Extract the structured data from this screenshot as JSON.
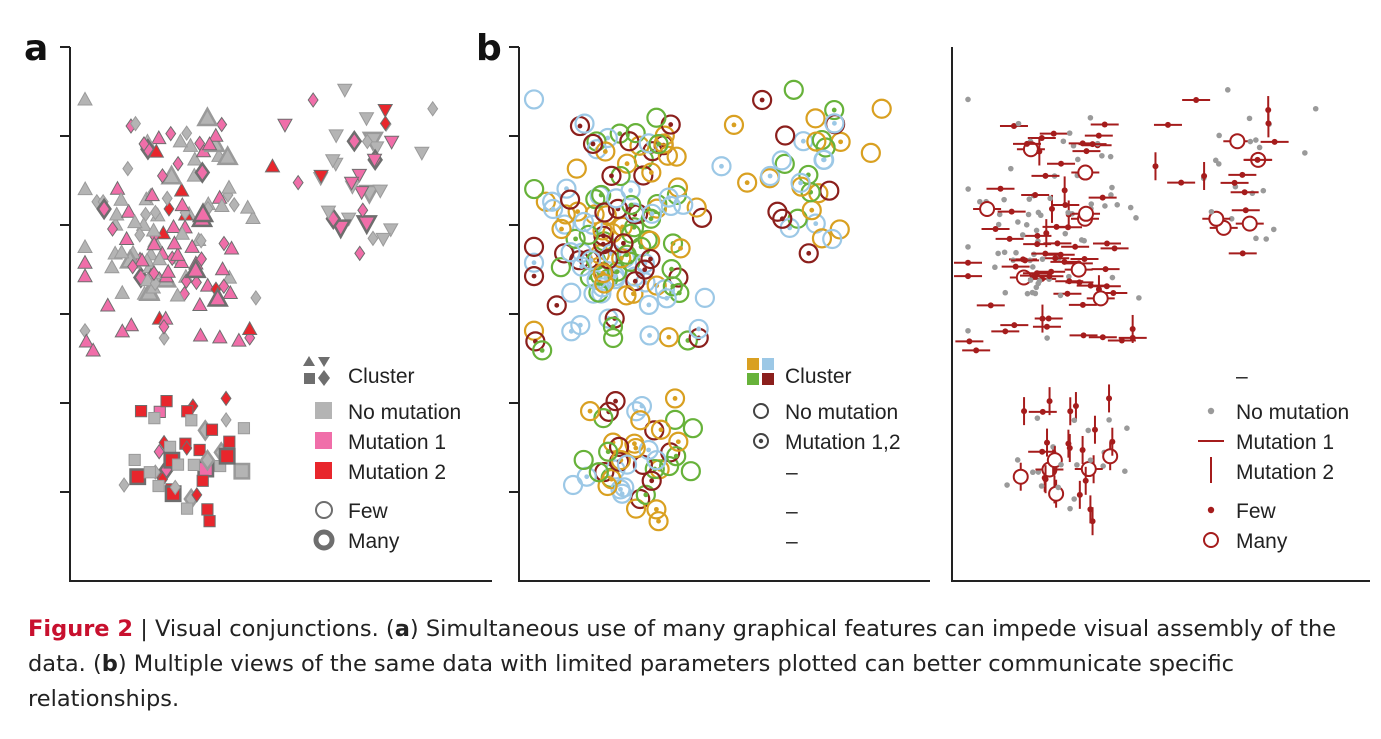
{
  "panel_labels": {
    "a": "a",
    "b": "b"
  },
  "colors": {
    "grey": "#b4b4b4",
    "grey_dark": "#6e6e6e",
    "pink": "#f06ea9",
    "red": "#e8262c",
    "dark_red": "#a51c1c",
    "orange": "#d9a021",
    "light_blue": "#9cc8e6",
    "green": "#67b23a",
    "brown": "#8b1f1c"
  },
  "legend_a": {
    "cluster": "Cluster",
    "no_mutation": "No mutation",
    "mutation1": "Mutation 1",
    "mutation2": "Mutation 2",
    "few": "Few",
    "many": "Many"
  },
  "legend_b1": {
    "cluster": "Cluster",
    "no_mutation": "No mutation",
    "mutation12": "Mutation 1,2",
    "dash1": "–",
    "dash2": "–",
    "dash3": "–"
  },
  "legend_b2": {
    "dash": "–",
    "no_mutation": "No mutation",
    "mutation1": "Mutation 1",
    "mutation2": "Mutation 2",
    "few": "Few",
    "many": "Many"
  },
  "caption": {
    "figure_label": "Figure 2",
    "sep": " | Visual conjunctions. (",
    "a": "a",
    "part_a": ") Simultaneous use of many graphical features can impede visual assembly of the data. (",
    "b": "b",
    "part_b": ") Multiple views of the same data with limited parameters plotted can better communicate specific relationships."
  },
  "chart_data": [
    {
      "type": "scatter",
      "panel": "a",
      "title": "",
      "xlabel": "",
      "ylabel": "",
      "xlim": [
        0,
        10
      ],
      "ylim": [
        0,
        10
      ],
      "grid": false,
      "legend_position": "bottom-right",
      "encoding": "shape = cluster, color = mutation (grey none / pink 1 / red 2), outline weight = few/many",
      "clusters": [
        {
          "name": "cluster-top-left",
          "shape": "triangle-up",
          "approx_center": [
            2.6,
            6.5
          ],
          "approx_count": 150
        },
        {
          "name": "cluster-top-right",
          "shape": "triangle-down",
          "approx_center": [
            6.3,
            7.8
          ],
          "approx_count": 40
        },
        {
          "name": "cluster-bottom",
          "shape": "square",
          "approx_center": [
            2.8,
            2.2
          ],
          "approx_count": 50
        }
      ],
      "mutation_shares": {
        "No mutation": 0.5,
        "Mutation 1": 0.4,
        "Mutation 2": 0.1
      }
    },
    {
      "type": "scatter",
      "panel": "b-left",
      "title": "",
      "xlabel": "",
      "ylabel": "",
      "xlim": [
        0,
        10
      ],
      "ylim": [
        0,
        10
      ],
      "grid": false,
      "legend_position": "bottom-right",
      "encoding": "color = cluster, center dot = mutation 1,2",
      "clusters": [
        {
          "name": "cluster-top-left",
          "approx_center": [
            3.0,
            6.6
          ],
          "approx_count": 110
        },
        {
          "name": "cluster-top-right",
          "approx_center": [
            7.0,
            7.9
          ],
          "approx_count": 30
        },
        {
          "name": "cluster-bottom",
          "approx_center": [
            3.0,
            2.2
          ],
          "approx_count": 40
        }
      ]
    },
    {
      "type": "scatter",
      "panel": "b-right",
      "title": "",
      "xlabel": "",
      "ylabel": "",
      "xlim": [
        0,
        10
      ],
      "ylim": [
        0,
        10
      ],
      "grid": false,
      "legend_position": "bottom-right",
      "encoding": "grey dot = no mutation, horizontal bar = mutation 1, vertical bar = mutation 2, open circle = many",
      "clusters": [
        {
          "name": "cluster-top-left",
          "approx_center": [
            3.0,
            6.6
          ],
          "approx_count": 110
        },
        {
          "name": "cluster-top-right",
          "approx_center": [
            7.0,
            7.9
          ],
          "approx_count": 30
        },
        {
          "name": "cluster-bottom",
          "approx_center": [
            3.0,
            2.2
          ],
          "approx_count": 40
        }
      ]
    }
  ]
}
